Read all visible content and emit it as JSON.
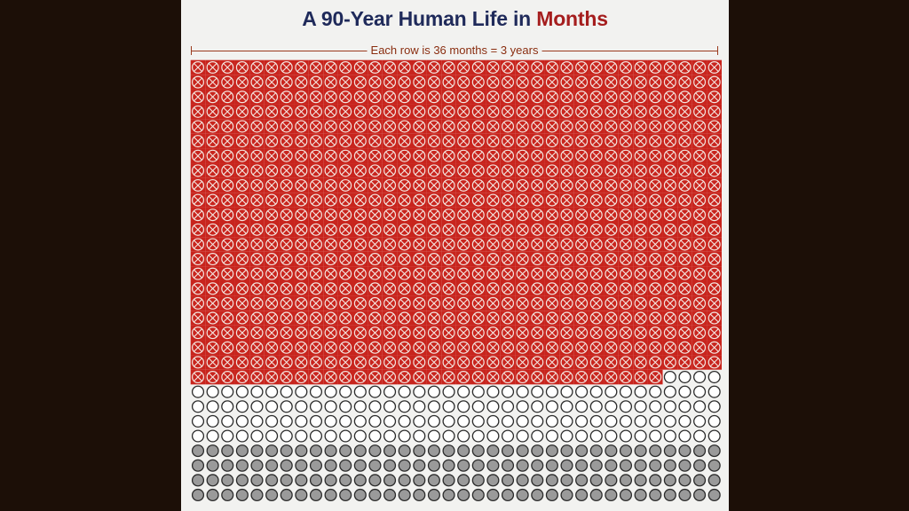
{
  "title": {
    "prefix": "A 90-Year Human Life in ",
    "accent": "Months"
  },
  "span_label": "Each row is 36 months = 3 years",
  "grid": {
    "months_per_row": 36,
    "rows_total": 30,
    "rows_visible": 30,
    "months_lived": 788,
    "states": [
      "lived",
      "remaining",
      "shaded"
    ],
    "shaded_from_row": 26
  },
  "colors": {
    "background": "#1c0f07",
    "paper": "#f2f2f0",
    "title": "#1f2a5a",
    "accent": "#a51e1e",
    "lived_fill": "#c8241d",
    "lived_mark": "#f4e6e0",
    "remaining_stroke": "#2b2b2b",
    "shaded_fill": "#9a9a9a"
  },
  "icons": {
    "lived": "crossed-circle-icon",
    "remaining": "empty-circle-icon",
    "shaded": "filled-gray-circle-icon"
  }
}
